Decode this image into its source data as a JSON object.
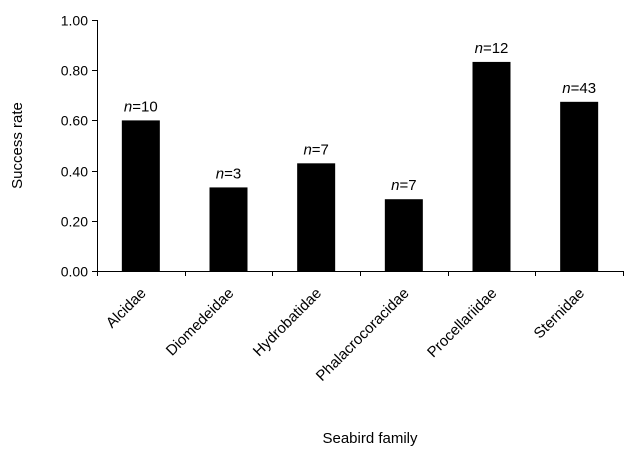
{
  "chart_data": {
    "type": "bar",
    "categories": [
      "Alcidae",
      "Diomedeidae",
      "Hydrobatidae",
      "Phalacrocoracidae",
      "Procellariidae",
      "Sternidae"
    ],
    "values": [
      0.6,
      0.333,
      0.429,
      0.286,
      0.833,
      0.674
    ],
    "data_labels": [
      {
        "italic": "n",
        "rest": "=10"
      },
      {
        "italic": "n",
        "rest": "=3"
      },
      {
        "italic": "n",
        "rest": "=7"
      },
      {
        "italic": "n",
        "rest": "=7"
      },
      {
        "italic": "n",
        "rest": "=12"
      },
      {
        "italic": "n",
        "rest": "=43"
      }
    ],
    "title": "",
    "xlabel": "Seabird family",
    "ylabel": "Success rate",
    "ylim": [
      0,
      1.0
    ],
    "yticks": [
      "0.00",
      "0.20",
      "0.40",
      "0.60",
      "0.80",
      "1.00"
    ],
    "bar_color": "#000000",
    "grid": false,
    "legend": "none"
  }
}
